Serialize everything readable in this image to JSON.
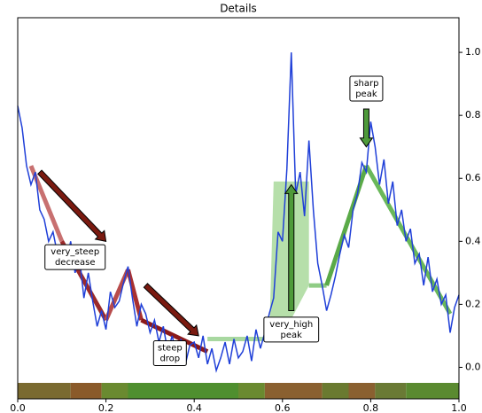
{
  "chart_data": {
    "type": "line",
    "title": "Details",
    "xlim": [
      0,
      1
    ],
    "ylim": [
      -0.1,
      1.11
    ],
    "xticks": [
      {
        "value": 0,
        "label": "0.0"
      },
      0.2,
      0.4,
      0.6,
      0.8,
      {
        "value": 1,
        "label": "1.0"
      }
    ],
    "yticks": [
      {
        "value": 0,
        "label": "0.0"
      },
      0.2,
      0.4,
      0.6,
      0.8,
      {
        "value": 1,
        "label": "1.0"
      }
    ],
    "series": [
      {
        "color": "#1f3fd8",
        "x": [
          0,
          0.01,
          0.02,
          0.03,
          0.04,
          0.05,
          0.06,
          0.07,
          0.08,
          0.09,
          0.1,
          0.11,
          0.12,
          0.13,
          0.14,
          0.15,
          0.16,
          0.17,
          0.18,
          0.19,
          0.2,
          0.21,
          0.22,
          0.23,
          0.24,
          0.25,
          0.26,
          0.27,
          0.28,
          0.29,
          0.3,
          0.31,
          0.32,
          0.33,
          0.34,
          0.35,
          0.36,
          0.37,
          0.38,
          0.39,
          0.4,
          0.41,
          0.42,
          0.43,
          0.44,
          0.45,
          0.46,
          0.47,
          0.48,
          0.49,
          0.5,
          0.51,
          0.52,
          0.53,
          0.54,
          0.55,
          0.56,
          0.57,
          0.58,
          0.59,
          0.6,
          0.61,
          0.62,
          0.63,
          0.64,
          0.65,
          0.66,
          0.67,
          0.68,
          0.69,
          0.7,
          0.71,
          0.72,
          0.73,
          0.74,
          0.75,
          0.76,
          0.77,
          0.78,
          0.79,
          0.8,
          0.81,
          0.82,
          0.83,
          0.84,
          0.85,
          0.86,
          0.87,
          0.88,
          0.89,
          0.9,
          0.91,
          0.92,
          0.93,
          0.94,
          0.95,
          0.96,
          0.97,
          0.98,
          0.99,
          1
        ],
        "values": [
          0.83,
          0.76,
          0.64,
          0.58,
          0.62,
          0.5,
          0.47,
          0.4,
          0.43,
          0.36,
          0.38,
          0.33,
          0.4,
          0.3,
          0.35,
          0.22,
          0.3,
          0.21,
          0.13,
          0.18,
          0.12,
          0.24,
          0.19,
          0.21,
          0.27,
          0.32,
          0.22,
          0.13,
          0.2,
          0.17,
          0.11,
          0.15,
          0.08,
          0.13,
          0.05,
          0.1,
          0.04,
          0.09,
          0.01,
          0.07,
          0.08,
          0.03,
          0.1,
          0.01,
          0.06,
          -0.01,
          0.03,
          0.08,
          0.01,
          0.09,
          0.03,
          0.05,
          0.1,
          0.02,
          0.12,
          0.06,
          0.11,
          0.17,
          0.22,
          0.43,
          0.4,
          0.63,
          1.0,
          0.55,
          0.62,
          0.48,
          0.72,
          0.5,
          0.33,
          0.26,
          0.18,
          0.23,
          0.29,
          0.36,
          0.42,
          0.38,
          0.5,
          0.55,
          0.65,
          0.62,
          0.78,
          0.7,
          0.58,
          0.66,
          0.52,
          0.59,
          0.45,
          0.5,
          0.4,
          0.44,
          0.33,
          0.36,
          0.26,
          0.35,
          0.24,
          0.28,
          0.2,
          0.23,
          0.11,
          0.19,
          0.23
        ]
      }
    ],
    "trends": [
      {
        "color": "#c87070",
        "x": [
          0.03,
          0.1
        ],
        "values": [
          0.64,
          0.4
        ]
      },
      {
        "color": "#9b2a2a",
        "x": [
          0.1,
          0.2
        ],
        "values": [
          0.4,
          0.15
        ]
      },
      {
        "color": "#b84c4c",
        "x": [
          0.2,
          0.25
        ],
        "values": [
          0.15,
          0.31
        ]
      },
      {
        "color": "#a83030",
        "x": [
          0.25,
          0.28
        ],
        "values": [
          0.31,
          0.15
        ]
      },
      {
        "color": "#8b1a1a",
        "x": [
          0.28,
          0.43
        ],
        "values": [
          0.15,
          0.05
        ]
      },
      {
        "color": "#a8d8a0",
        "x": [
          0.43,
          0.57
        ],
        "values": [
          0.09,
          0.09
        ]
      },
      {
        "color": "#8fcc85",
        "x": [
          0.66,
          0.7
        ],
        "values": [
          0.26,
          0.26
        ]
      },
      {
        "color": "#5aaa48",
        "x": [
          0.7,
          0.79
        ],
        "values": [
          0.26,
          0.64
        ]
      },
      {
        "color": "#6ab85a",
        "x": [
          0.79,
          0.98
        ],
        "values": [
          0.64,
          0.17
        ]
      }
    ],
    "areas": [
      {
        "color": "#b6dfaa",
        "x": [
          0.57,
          0.58,
          0.66,
          0.66,
          0.6
        ],
        "values": [
          0.09,
          0.59,
          0.59,
          0.26,
          0.1
        ]
      }
    ],
    "annotations": [
      "very_steep\ndecrease",
      "steep\ndrop",
      "very_high\npeak",
      "sharp\npeak"
    ]
  }
}
